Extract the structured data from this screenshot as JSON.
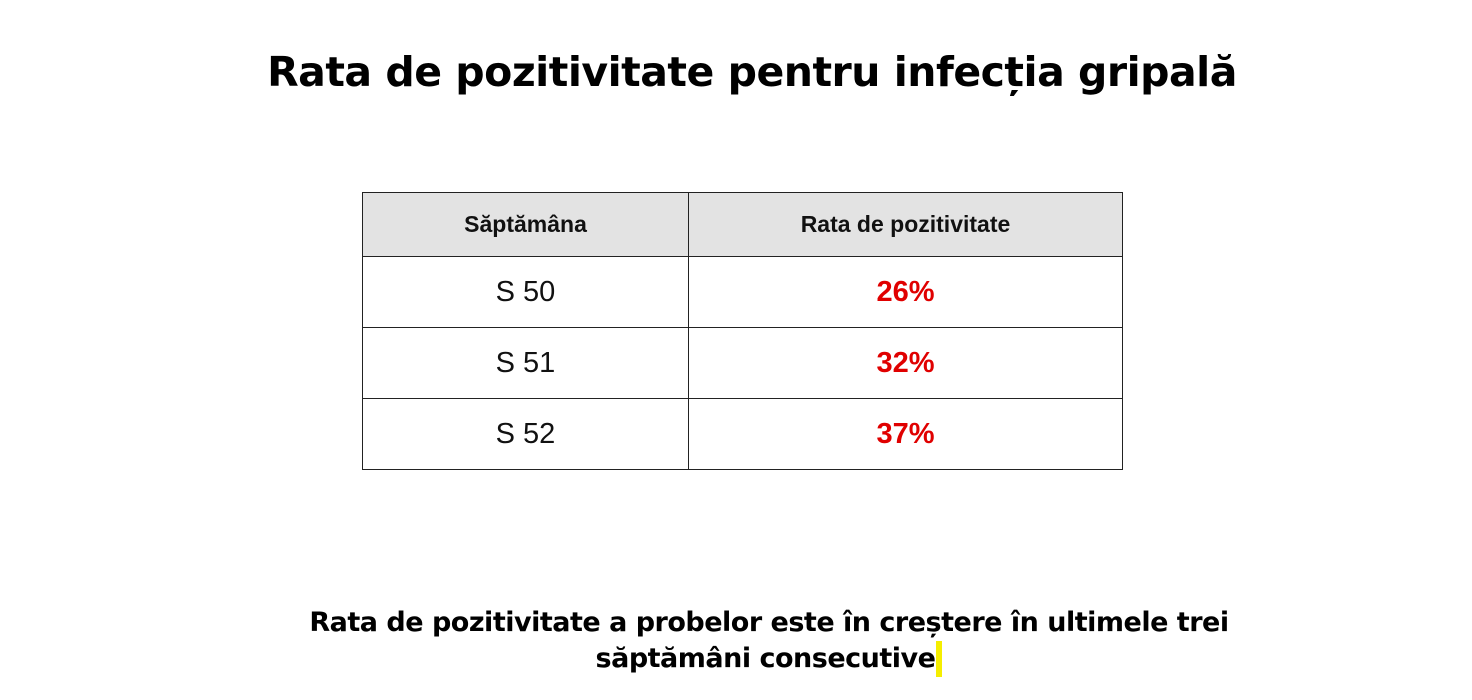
{
  "title": "Rata de pozitivitate pentru infecția gripală",
  "table": {
    "headers": [
      "Săptămâna",
      "Rata de pozitivitate"
    ],
    "rows": [
      {
        "week": "S 50",
        "rate": "26%"
      },
      {
        "week": "S 51",
        "rate": "32%"
      },
      {
        "week": "S 52",
        "rate": "37%"
      }
    ]
  },
  "note": {
    "line1": "Rata de pozitivitate a probelor este în creștere în ultimele trei",
    "line2": "săptămâni consecutive"
  },
  "colors": {
    "rate": "#e00000",
    "header_bg": "#e3e3e3",
    "cursor": "#f5ee00"
  }
}
